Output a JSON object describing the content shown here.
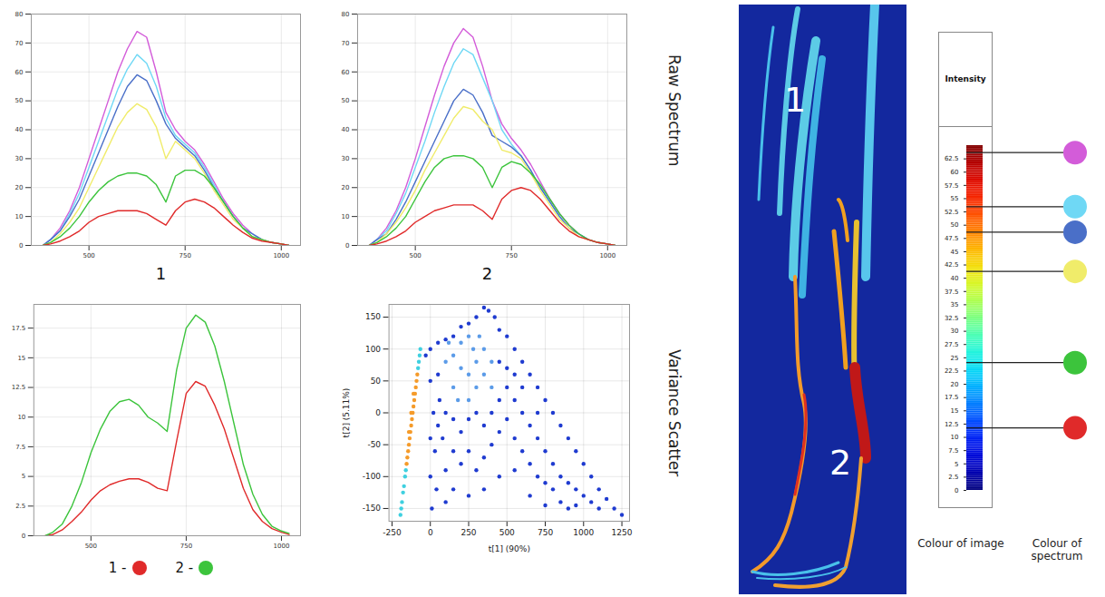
{
  "chart_data": [
    {
      "type": "line",
      "title": "1",
      "x": [
        380,
        400,
        425,
        450,
        475,
        500,
        525,
        550,
        575,
        600,
        625,
        650,
        675,
        700,
        725,
        750,
        775,
        800,
        825,
        850,
        875,
        900,
        925,
        950,
        975,
        1000,
        1020
      ],
      "xlim": [
        350,
        1050
      ],
      "xticks": [
        500,
        750,
        1000
      ],
      "ylim": [
        0,
        80
      ],
      "yticks": [
        0,
        10,
        20,
        30,
        40,
        50,
        60,
        70,
        80
      ],
      "grid": true,
      "series": [
        {
          "color": "#d35cd9",
          "values": [
            0,
            2,
            6,
            12,
            20,
            30,
            40,
            50,
            60,
            68,
            74,
            72,
            60,
            46,
            40,
            36,
            33,
            28,
            22,
            16,
            11,
            7,
            4,
            2,
            1,
            0.5,
            0
          ]
        },
        {
          "color": "#6fd8f5",
          "values": [
            0,
            2,
            5,
            11,
            18,
            27,
            36,
            45,
            54,
            61,
            66,
            63,
            55,
            44,
            38,
            35,
            32,
            27,
            21,
            15,
            10,
            6,
            4,
            2,
            1,
            0.5,
            0
          ]
        },
        {
          "color": "#4a6fc8",
          "values": [
            0,
            2,
            5,
            10,
            16,
            24,
            32,
            40,
            48,
            55,
            59,
            57,
            50,
            42,
            37,
            34,
            31,
            26,
            20,
            15,
            10,
            6,
            4,
            2,
            1,
            0.5,
            0
          ]
        },
        {
          "color": "#f0ec6a",
          "values": [
            0,
            1,
            4,
            8,
            13,
            20,
            27,
            34,
            41,
            46,
            49,
            47,
            41,
            30,
            36,
            33,
            30,
            25,
            19,
            14,
            9,
            6,
            3,
            2,
            1,
            0.5,
            0
          ]
        },
        {
          "color": "#3cc43c",
          "values": [
            0,
            1,
            3,
            6,
            10,
            15,
            19,
            22,
            24,
            25,
            25,
            24,
            21,
            15,
            24,
            26,
            26,
            24,
            20,
            15,
            10,
            6,
            3,
            2,
            1,
            0.5,
            0
          ]
        },
        {
          "color": "#e02a2a",
          "values": [
            0,
            0.5,
            1.5,
            3,
            5,
            8,
            10,
            11,
            12,
            12,
            12,
            11,
            9,
            7,
            12,
            15,
            16,
            15,
            13,
            10,
            7,
            4.5,
            2.5,
            1.5,
            1,
            0.5,
            0
          ]
        }
      ]
    },
    {
      "type": "line",
      "title": "2",
      "x": [
        380,
        400,
        425,
        450,
        475,
        500,
        525,
        550,
        575,
        600,
        625,
        650,
        675,
        700,
        725,
        750,
        775,
        800,
        825,
        850,
        875,
        900,
        925,
        950,
        975,
        1000,
        1020
      ],
      "xlim": [
        350,
        1050
      ],
      "xticks": [
        500,
        750,
        1000
      ],
      "ylim": [
        0,
        80
      ],
      "yticks": [
        0,
        10,
        20,
        30,
        40,
        50,
        60,
        70,
        80
      ],
      "grid": true,
      "series": [
        {
          "color": "#d35cd9",
          "values": [
            0,
            2,
            6,
            12,
            20,
            30,
            41,
            52,
            62,
            70,
            75,
            72,
            62,
            50,
            42,
            37,
            33,
            28,
            22,
            16,
            11,
            7,
            4,
            2,
            1,
            0.5,
            0
          ]
        },
        {
          "color": "#6fd8f5",
          "values": [
            0,
            2,
            5,
            11,
            18,
            27,
            36,
            46,
            55,
            63,
            68,
            66,
            58,
            50,
            40,
            35,
            31,
            26,
            20,
            15,
            10,
            6,
            4,
            2,
            1,
            0.5,
            0
          ]
        },
        {
          "color": "#4a6fc8",
          "values": [
            0,
            2,
            4,
            9,
            15,
            22,
            29,
            36,
            43,
            50,
            54,
            52,
            46,
            38,
            36,
            34,
            31,
            26,
            20,
            15,
            10,
            6,
            4,
            2,
            1,
            0.5,
            0
          ]
        },
        {
          "color": "#f0ec6a",
          "values": [
            0,
            1,
            4,
            8,
            13,
            19,
            26,
            32,
            38,
            44,
            48,
            47,
            43,
            40,
            33,
            32,
            30,
            25,
            19,
            14,
            9,
            6,
            3,
            2,
            1,
            0.5,
            0
          ]
        },
        {
          "color": "#3cc43c",
          "values": [
            0,
            1,
            3,
            6,
            10,
            16,
            22,
            27,
            30,
            31,
            31,
            30,
            27,
            20,
            27,
            29,
            28,
            25,
            21,
            16,
            11,
            7,
            4,
            2,
            1,
            0.5,
            0
          ]
        },
        {
          "color": "#e02a2a",
          "values": [
            0,
            0.5,
            1.5,
            3,
            5,
            8,
            10,
            12,
            13,
            14,
            14,
            14,
            12,
            9,
            16,
            19,
            20,
            19,
            16,
            12,
            8,
            5,
            3,
            2,
            1,
            0.5,
            0
          ]
        }
      ]
    },
    {
      "type": "line",
      "legend": "bottom",
      "x": [
        380,
        400,
        425,
        450,
        475,
        500,
        525,
        550,
        575,
        600,
        625,
        650,
        675,
        700,
        725,
        750,
        775,
        800,
        825,
        850,
        875,
        900,
        925,
        950,
        975,
        1000,
        1020
      ],
      "xlim": [
        350,
        1050
      ],
      "xticks": [
        500,
        750,
        1000
      ],
      "ylim": [
        0,
        19.5
      ],
      "yticks": [
        0,
        2.5,
        5,
        7.5,
        10,
        12.5,
        15,
        17.5
      ],
      "grid": true,
      "series": [
        {
          "name": "1 -",
          "color": "#e02a2a",
          "values": [
            0,
            0.1,
            0.5,
            1.2,
            2,
            3,
            3.8,
            4.3,
            4.6,
            4.8,
            4.8,
            4.5,
            4,
            3.8,
            8,
            12,
            13,
            12.6,
            11,
            9,
            6.5,
            4,
            2.2,
            1.2,
            0.6,
            0.3,
            0.1
          ]
        },
        {
          "name": "2 -",
          "color": "#3cc43c",
          "values": [
            0,
            0.3,
            1,
            2.5,
            4.5,
            7,
            9,
            10.5,
            11.3,
            11.5,
            11,
            10,
            9.5,
            8.8,
            14,
            17.5,
            18.6,
            18,
            16,
            13,
            9.5,
            6,
            3.5,
            1.8,
            0.8,
            0.4,
            0.2
          ]
        }
      ]
    },
    {
      "type": "scatter",
      "x_label": "t[1] (90%)",
      "y_label": "t[2] (5.11%)",
      "xlim": [
        -270,
        1300
      ],
      "xticks": [
        -250,
        0,
        250,
        500,
        750,
        1000,
        1250
      ],
      "ylim": [
        -170,
        170
      ],
      "yticks": [
        -150,
        -100,
        -50,
        0,
        50,
        100,
        150
      ],
      "grid": true,
      "series": [
        {
          "color": "#1f3bd0",
          "x": [
            350,
            380,
            300,
            420,
            250,
            200,
            450,
            500,
            150,
            100,
            50,
            0,
            -30,
            550,
            600,
            650,
            700,
            750,
            800,
            850,
            900,
            950,
            1000,
            1050,
            1100,
            1150,
            1200,
            1250,
            0,
            50,
            20,
            60,
            100,
            150,
            80,
            30,
            0,
            40,
            10,
            100,
            150,
            200,
            250,
            300,
            350,
            400,
            450,
            500,
            550,
            600,
            650,
            700,
            750,
            800,
            850,
            900,
            950,
            1000,
            1050,
            1100,
            200,
            250,
            300,
            350,
            400,
            450,
            500,
            550,
            600,
            650,
            700,
            750,
            800,
            850,
            900,
            950,
            150,
            250,
            350,
            450,
            550,
            650,
            750,
            100,
            500,
            450,
            550,
            600,
            700,
            50,
            0
          ],
          "y": [
            165,
            160,
            150,
            150,
            140,
            135,
            130,
            120,
            120,
            115,
            110,
            100,
            90,
            100,
            80,
            60,
            40,
            20,
            0,
            -20,
            -40,
            -60,
            -80,
            -100,
            -120,
            -135,
            -150,
            -160,
            50,
            60,
            0,
            20,
            0,
            -10,
            -40,
            -60,
            -100,
            -120,
            -150,
            -90,
            -60,
            -30,
            -10,
            0,
            -20,
            0,
            20,
            40,
            20,
            0,
            -20,
            -40,
            -60,
            -80,
            -100,
            -110,
            -120,
            -130,
            -140,
            -150,
            -80,
            -60,
            -90,
            -70,
            -50,
            -30,
            -10,
            -40,
            -60,
            -80,
            -100,
            -110,
            -120,
            -140,
            -150,
            -145,
            -120,
            -130,
            -120,
            -100,
            -90,
            -130,
            -145,
            -140,
            70,
            80,
            60,
            40,
            0,
            -20,
            -40
          ]
        },
        {
          "color": "#5b9be8",
          "x": [
            100,
            150,
            200,
            250,
            300,
            350,
            200,
            250,
            150,
            300,
            350,
            400,
            250,
            180,
            320,
            120,
            400,
            280
          ],
          "y": [
            80,
            90,
            70,
            60,
            80,
            100,
            110,
            120,
            40,
            40,
            60,
            80,
            20,
            20,
            120,
            110,
            40,
            100
          ]
        },
        {
          "color": "#3fd0e0",
          "x": [
            -195,
            -190,
            -185,
            -178,
            -172,
            -165,
            -160,
            -80,
            -75,
            -70,
            -65
          ],
          "y": [
            -160,
            -150,
            -140,
            -125,
            -115,
            -100,
            -90,
            70,
            80,
            90,
            100
          ]
        },
        {
          "color": "#f59b2a",
          "x": [
            -155,
            -150,
            -145,
            -140,
            -135,
            -130,
            -125,
            -120,
            -115,
            -110,
            -105,
            -100,
            -95,
            -90,
            -85,
            -140,
            -125,
            -110
          ],
          "y": [
            -80,
            -70,
            -60,
            -50,
            -40,
            -30,
            -20,
            -10,
            0,
            10,
            20,
            30,
            40,
            50,
            60,
            -30,
            0,
            30
          ]
        }
      ]
    }
  ],
  "side_labels": [
    "Raw Spectrum",
    "Variance Scatter"
  ],
  "image": {
    "labels": [
      "1",
      "2"
    ]
  },
  "colorbar": {
    "title": "Intensity",
    "range": [
      0,
      65
    ],
    "ticks": [
      0,
      2.5,
      5,
      7.5,
      10,
      12.5,
      15,
      17.5,
      20,
      22.5,
      25,
      27.5,
      30,
      32.5,
      35,
      37.5,
      40,
      42.5,
      45,
      47.5,
      50,
      52.5,
      55,
      57.5,
      60,
      62.5
    ],
    "markers": [
      {
        "value": 63.6,
        "color": "#d35cd9"
      },
      {
        "value": 53.4,
        "color": "#6fd8f5"
      },
      {
        "value": 48.6,
        "color": "#4a6fc8"
      },
      {
        "value": 41.2,
        "color": "#f0ec6a"
      },
      {
        "value": 24,
        "color": "#3cc43c"
      },
      {
        "value": 11.7,
        "color": "#e02a2a"
      }
    ]
  },
  "column_labels": [
    "Colour of image",
    "Colour of spectrum"
  ]
}
